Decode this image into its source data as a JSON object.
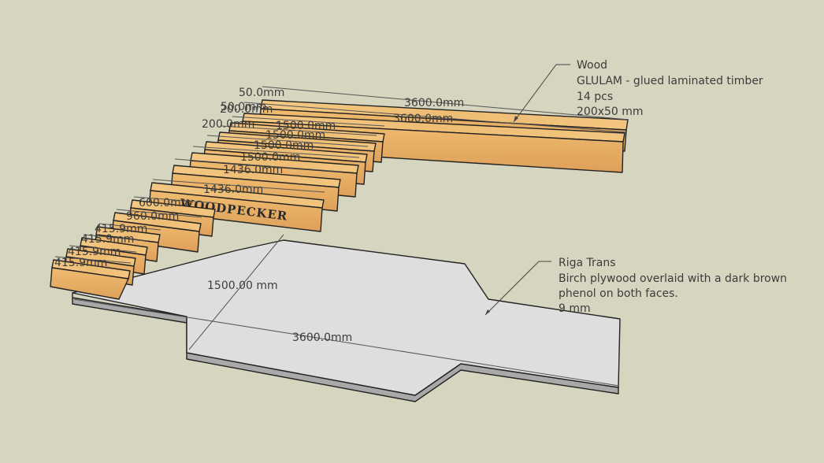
{
  "callouts": {
    "wood": {
      "title": "Wood",
      "lines": [
        "GLULAM - glued laminated timber",
        "14 pcs",
        "200x50 mm"
      ]
    },
    "plywood": {
      "title": "Riga Trans",
      "lines": [
        "Birch plywood overlaid with a dark brown",
        "phenol on both faces.",
        "9 mm"
      ]
    }
  },
  "dimensions": {
    "long_top": "3600.0mm",
    "long_second": "3600.0mm",
    "thick_a": "50.0mm",
    "thick_b": "50.0mm",
    "width_a": "200.0mm",
    "width_b": "200.0mm",
    "mid_1": "1500.0mm",
    "mid_2": "1500.0mm",
    "mid_3": "1500.0mm",
    "mid_4": "1500.0mm",
    "b1436_a": "1436.0mm",
    "b1436_b": "1436.0mm",
    "short_a": "600.0mm",
    "short_b": "960.0mm",
    "tiny_a": "415.9mm",
    "tiny_b": "415.9mm",
    "tiny_c": "415.9mm",
    "tiny_d": "415.9mm",
    "plate_width": "1500.00 mm",
    "plate_length": "3600.0mm"
  },
  "engraving": "WOODPECKER",
  "colors": {
    "background": "#d6d5bf",
    "wood_top": "#f0c27a",
    "wood_front": "#e3a862",
    "wood_edge": "#7a5a35",
    "plate_top": "#dcdcdc",
    "plate_edge": "#8a8a8a"
  }
}
